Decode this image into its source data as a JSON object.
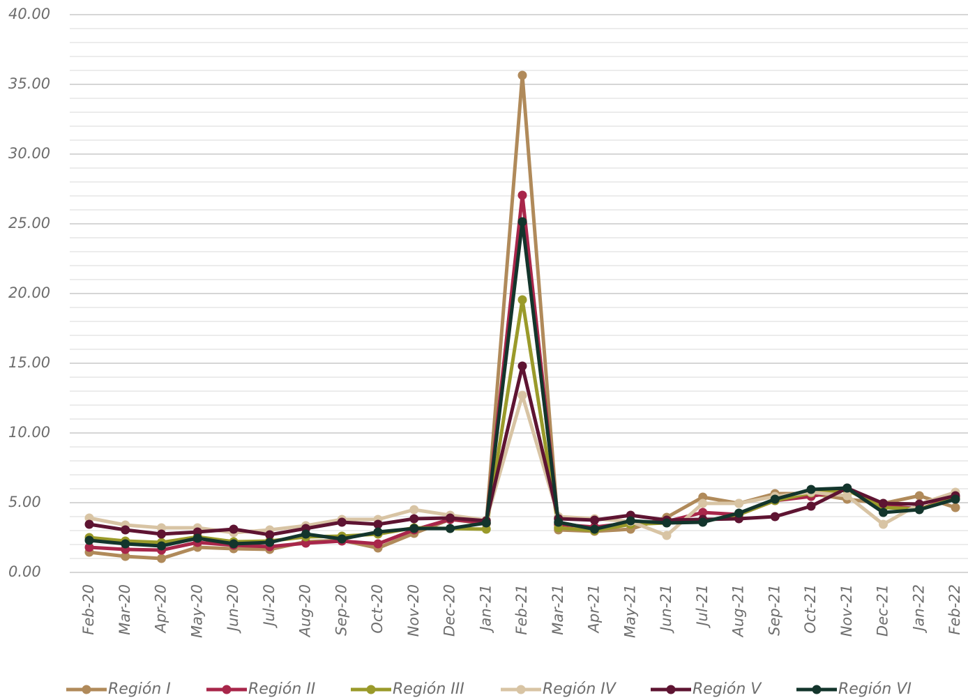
{
  "chart_data": {
    "type": "line",
    "categories": [
      "Feb-20",
      "Mar-20",
      "Apr-20",
      "May-20",
      "Jun-20",
      "Jul-20",
      "Aug-20",
      "Sep-20",
      "Oct-20",
      "Nov-20",
      "Dec-20",
      "Jan-21",
      "Feb-21",
      "Mar-21",
      "Apr-21",
      "May-21",
      "Jun-21",
      "Jul-21",
      "Aug-21",
      "Sep-21",
      "Oct-21",
      "Nov-21",
      "Dec-21",
      "Jan-22",
      "Feb-22"
    ],
    "series": [
      {
        "name": "Región I",
        "color": "#b08a5a",
        "values": [
          1.45,
          1.15,
          1.0,
          1.8,
          1.7,
          1.65,
          2.2,
          2.3,
          1.75,
          2.8,
          3.8,
          3.5,
          35.65,
          3.05,
          2.95,
          3.1,
          3.95,
          5.4,
          4.95,
          5.65,
          5.65,
          5.25,
          4.95,
          5.5,
          4.65
        ]
      },
      {
        "name": "Región II",
        "color": "#a8264a",
        "values": [
          1.8,
          1.65,
          1.6,
          2.15,
          1.95,
          1.85,
          2.1,
          2.25,
          2.05,
          3.05,
          3.8,
          3.55,
          27.05,
          3.45,
          3.25,
          3.55,
          3.65,
          4.3,
          4.15,
          5.15,
          5.45,
          5.95,
          4.8,
          4.55,
          5.4
        ]
      },
      {
        "name": "Región III",
        "color": "#9a9a2a",
        "values": [
          2.5,
          2.25,
          2.15,
          2.55,
          2.2,
          2.25,
          2.55,
          2.6,
          2.75,
          3.2,
          3.15,
          3.1,
          19.55,
          3.2,
          3.0,
          3.45,
          3.55,
          3.65,
          4.15,
          5.15,
          5.7,
          5.9,
          4.65,
          4.55,
          5.3
        ]
      },
      {
        "name": "Región IV",
        "color": "#d8c4a4",
        "values": [
          3.9,
          3.4,
          3.2,
          3.2,
          2.85,
          3.05,
          3.35,
          3.8,
          3.8,
          4.5,
          4.1,
          3.75,
          12.7,
          4.0,
          3.85,
          3.65,
          2.65,
          4.95,
          4.95,
          5.45,
          5.75,
          5.5,
          3.45,
          4.9,
          5.75
        ]
      },
      {
        "name": "Región V",
        "color": "#5e1432",
        "values": [
          3.45,
          3.05,
          2.75,
          2.9,
          3.1,
          2.7,
          3.15,
          3.6,
          3.45,
          3.85,
          3.9,
          3.7,
          14.8,
          3.85,
          3.75,
          4.1,
          3.75,
          3.8,
          3.85,
          4.0,
          4.75,
          6.05,
          4.95,
          4.9,
          5.5
        ]
      },
      {
        "name": "Región VI",
        "color": "#13352c",
        "values": [
          2.3,
          2.05,
          1.9,
          2.45,
          2.05,
          2.15,
          2.75,
          2.4,
          2.9,
          3.15,
          3.15,
          3.55,
          25.15,
          3.6,
          3.1,
          3.7,
          3.55,
          3.6,
          4.25,
          5.25,
          5.95,
          6.05,
          4.3,
          4.5,
          5.25
        ]
      }
    ],
    "ylim": [
      0,
      40
    ],
    "yticks": [
      {
        "value": 0,
        "label": "0.00"
      },
      {
        "value": 5,
        "label": "5.00"
      },
      {
        "value": 10,
        "label": "10.00"
      },
      {
        "value": 15,
        "label": "15.00"
      },
      {
        "value": 20,
        "label": "20.00"
      },
      {
        "value": 25,
        "label": "25.00"
      },
      {
        "value": 30,
        "label": "30.00"
      },
      {
        "value": 35,
        "label": "35.00"
      },
      {
        "value": 40,
        "label": "40.00"
      }
    ],
    "grid": true,
    "legend": "bottom"
  }
}
